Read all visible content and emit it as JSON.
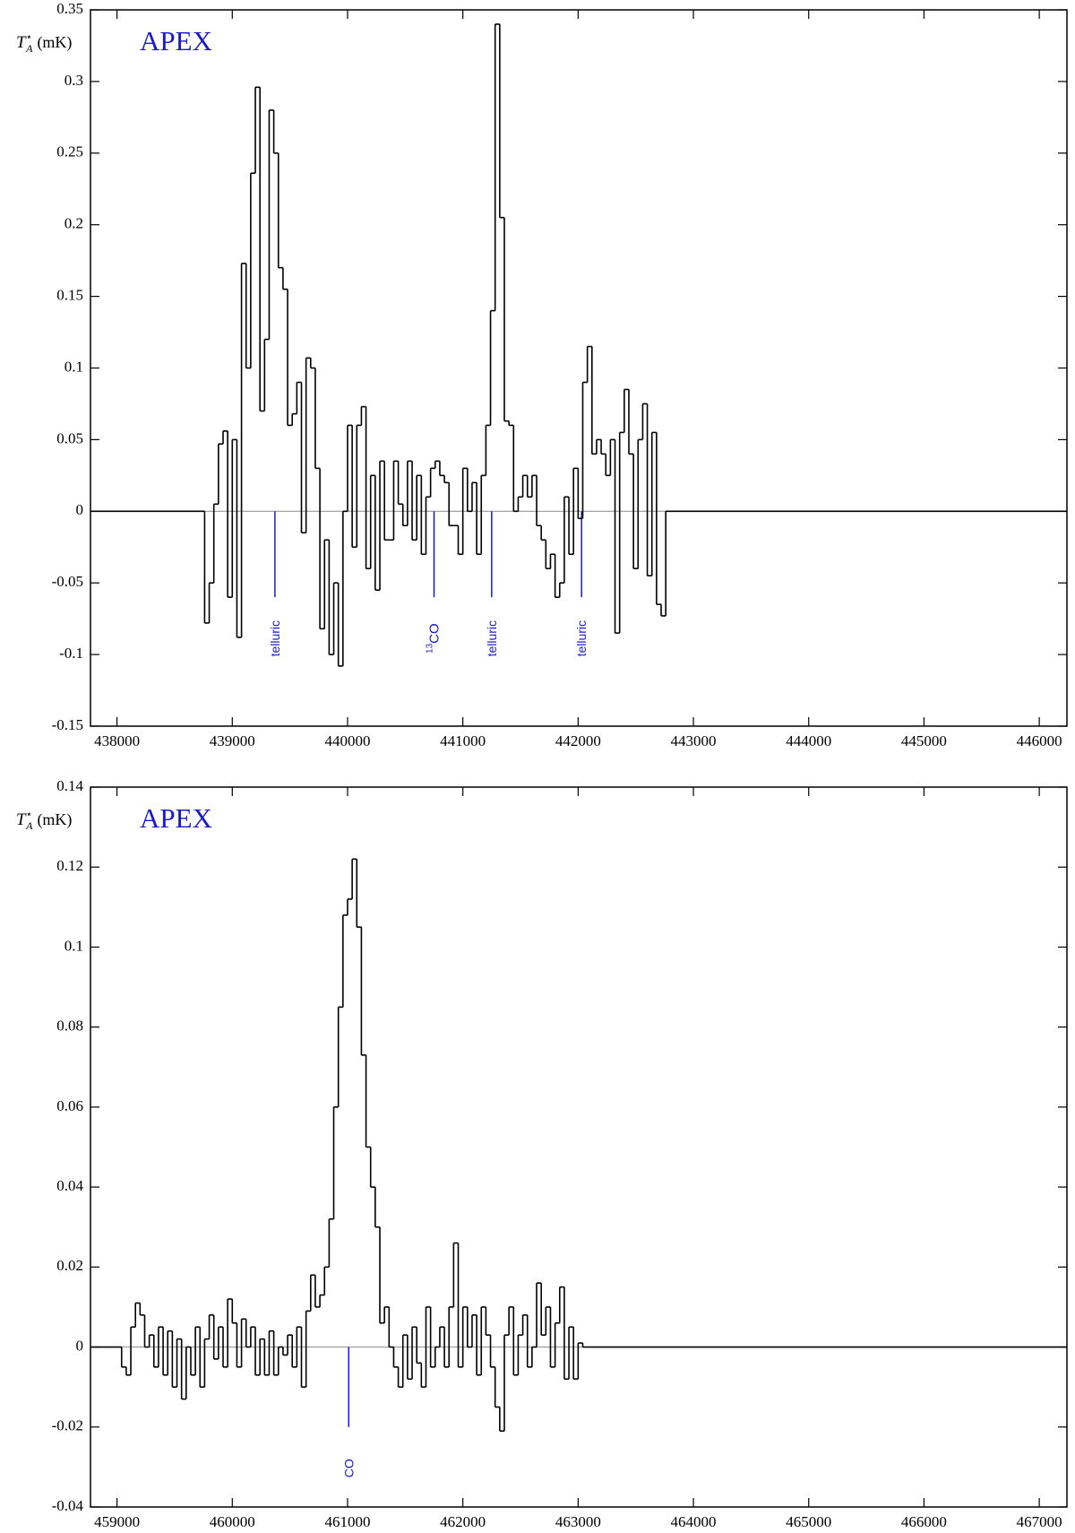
{
  "chart_data": [
    {
      "type": "histogram",
      "histtype": "step",
      "label": "APEX",
      "label_color": "#1a1acc",
      "ylabel": {
        "symbol": "T",
        "sup": "⋆",
        "sub": "A",
        "unit": "(mK)"
      },
      "color": "#000000",
      "bins": [
        437770,
        438760,
        438800,
        438840,
        438880,
        438920,
        438960,
        439000,
        439040,
        439080,
        439120,
        439160,
        439200,
        439240,
        439280,
        439320,
        439360,
        439400,
        439440,
        439480,
        439520,
        439560,
        439600,
        439640,
        439680,
        439720,
        439760,
        439800,
        439840,
        439880,
        439920,
        439960,
        440000,
        440040,
        440080,
        440120,
        440160,
        440200,
        440240,
        440280,
        440320,
        440360,
        440400,
        440440,
        440480,
        440520,
        440560,
        440600,
        440640,
        440680,
        440720,
        440760,
        440800,
        440840,
        440880,
        440920,
        440960,
        441000,
        441040,
        441080,
        441120,
        441160,
        441200,
        441240,
        441280,
        441320,
        441360,
        441400,
        441440,
        441480,
        441520,
        441560,
        441600,
        441640,
        441680,
        441720,
        441760,
        441800,
        441840,
        441880,
        441920,
        441960,
        442000,
        442040,
        442080,
        442120,
        442160,
        442200,
        442240,
        442280,
        442320,
        442360,
        442400,
        442440,
        442480,
        442520,
        442560,
        442600,
        442640,
        442680,
        442720,
        442760,
        446240
      ],
      "values": [
        0,
        -0.078,
        -0.05,
        0.005,
        0.047,
        0.056,
        -0.06,
        0.05,
        -0.088,
        0.173,
        0.1,
        0.236,
        0.296,
        0.07,
        0.12,
        0.28,
        0.25,
        0.17,
        0.155,
        0.06,
        0.068,
        0.09,
        -0.015,
        0.107,
        0.1,
        0.03,
        -0.082,
        -0.02,
        -0.1,
        -0.05,
        -0.108,
        0,
        0.06,
        -0.025,
        0.06,
        0.073,
        -0.04,
        0.025,
        -0.055,
        0.035,
        -0.02,
        -0.02,
        0.035,
        0.005,
        -0.01,
        0.035,
        -0.02,
        0.025,
        -0.03,
        0.01,
        0.03,
        0.035,
        0.025,
        0.02,
        -0.01,
        -0.01,
        -0.03,
        0.03,
        0,
        0.02,
        -0.03,
        0.025,
        0.06,
        0.14,
        0.34,
        0.205,
        0.063,
        0.06,
        0,
        0.01,
        0.025,
        0.01,
        0.025,
        -0.01,
        -0.02,
        -0.04,
        -0.03,
        -0.06,
        -0.05,
        0.01,
        -0.03,
        0.03,
        -0.005,
        0.09,
        0.115,
        0.04,
        0.05,
        0.04,
        0.025,
        0.05,
        -0.085,
        0.055,
        0.085,
        0.04,
        -0.04,
        0.05,
        0.075,
        -0.045,
        0.055,
        -0.065,
        -0.073,
        0
      ],
      "xlim": [
        437770,
        446240
      ],
      "ylim": [
        -0.15,
        0.35
      ],
      "xticks": [
        438000,
        439000,
        440000,
        441000,
        442000,
        443000,
        444000,
        445000,
        446000
      ],
      "yticks": [
        -0.15,
        -0.1,
        -0.05,
        0,
        0.05,
        0.1,
        0.15,
        0.2,
        0.25,
        0.3,
        0.35
      ],
      "reference_line": {
        "y": 0,
        "color": "#999999"
      },
      "annotation_color": "#1a1acc",
      "annotations": [
        {
          "x": 439370,
          "y": -0.06,
          "text": "telluric"
        },
        {
          "x": 440750,
          "y": -0.06,
          "sup": "13",
          "text": "CO"
        },
        {
          "x": 441250,
          "y": -0.06,
          "text": "telluric"
        },
        {
          "x": 442030,
          "y": -0.06,
          "text": "telluric"
        }
      ]
    },
    {
      "type": "histogram",
      "histtype": "step",
      "label": "APEX",
      "label_color": "#1a1acc",
      "ylabel": {
        "symbol": "T",
        "sup": "⋆",
        "sub": "A",
        "unit": "(mK)"
      },
      "color": "#000000",
      "bins": [
        458770,
        459040,
        459080,
        459120,
        459160,
        459200,
        459240,
        459280,
        459320,
        459360,
        459400,
        459440,
        459480,
        459520,
        459560,
        459600,
        459640,
        459680,
        459720,
        459760,
        459800,
        459840,
        459880,
        459920,
        459960,
        460000,
        460040,
        460080,
        460120,
        460160,
        460200,
        460240,
        460280,
        460320,
        460360,
        460400,
        460440,
        460480,
        460520,
        460560,
        460600,
        460640,
        460680,
        460720,
        460760,
        460800,
        460840,
        460880,
        460920,
        460960,
        461000,
        461040,
        461080,
        461120,
        461160,
        461200,
        461240,
        461280,
        461320,
        461360,
        461400,
        461440,
        461480,
        461520,
        461560,
        461600,
        461640,
        461680,
        461720,
        461760,
        461800,
        461840,
        461880,
        461920,
        461960,
        462000,
        462040,
        462080,
        462120,
        462160,
        462200,
        462240,
        462280,
        462320,
        462360,
        462400,
        462440,
        462480,
        462520,
        462560,
        462600,
        462640,
        462680,
        462720,
        462760,
        462800,
        462840,
        462880,
        462920,
        462960,
        463000,
        463040,
        467240
      ],
      "values": [
        0,
        -0.005,
        -0.007,
        0.005,
        0.011,
        0.008,
        0,
        0.003,
        -0.005,
        0.005,
        -0.007,
        0.004,
        -0.01,
        0.002,
        -0.013,
        0,
        -0.007,
        0.005,
        -0.01,
        0.002,
        0.008,
        -0.003,
        0.005,
        -0.005,
        0.012,
        0.006,
        -0.005,
        0.007,
        0,
        0.005,
        -0.007,
        0.002,
        -0.007,
        0.004,
        -0.007,
        0,
        -0.002,
        0.003,
        -0.005,
        0.005,
        -0.01,
        0.009,
        0.018,
        0.01,
        0.013,
        0.02,
        0.032,
        0.06,
        0.085,
        0.108,
        0.112,
        0.122,
        0.105,
        0.073,
        0.05,
        0.04,
        0.03,
        0.006,
        0.01,
        0,
        -0.005,
        -0.01,
        0.003,
        -0.008,
        0.005,
        -0.004,
        -0.01,
        0.01,
        -0.005,
        0,
        0.005,
        -0.005,
        0.01,
        0.026,
        -0.005,
        0.01,
        0,
        0.008,
        -0.007,
        0.01,
        0.003,
        -0.005,
        -0.015,
        -0.021,
        0.003,
        0.01,
        -0.007,
        0.003,
        0.008,
        -0.005,
        0,
        0.016,
        0.003,
        0.01,
        -0.005,
        0.006,
        0.015,
        -0.008,
        0.005,
        -0.008,
        0.001,
        0
      ],
      "xlim": [
        458770,
        467240
      ],
      "ylim": [
        -0.04,
        0.14
      ],
      "xticks": [
        459000,
        460000,
        461000,
        462000,
        463000,
        464000,
        465000,
        466000,
        467000
      ],
      "yticks": [
        -0.04,
        -0.02,
        0,
        0.02,
        0.04,
        0.06,
        0.08,
        0.1,
        0.12,
        0.14
      ],
      "reference_line": {
        "y": 0,
        "color": "#999999"
      },
      "annotation_color": "#1a1acc",
      "annotations": [
        {
          "x": 461010,
          "y": -0.02,
          "text": "CO"
        }
      ]
    }
  ]
}
